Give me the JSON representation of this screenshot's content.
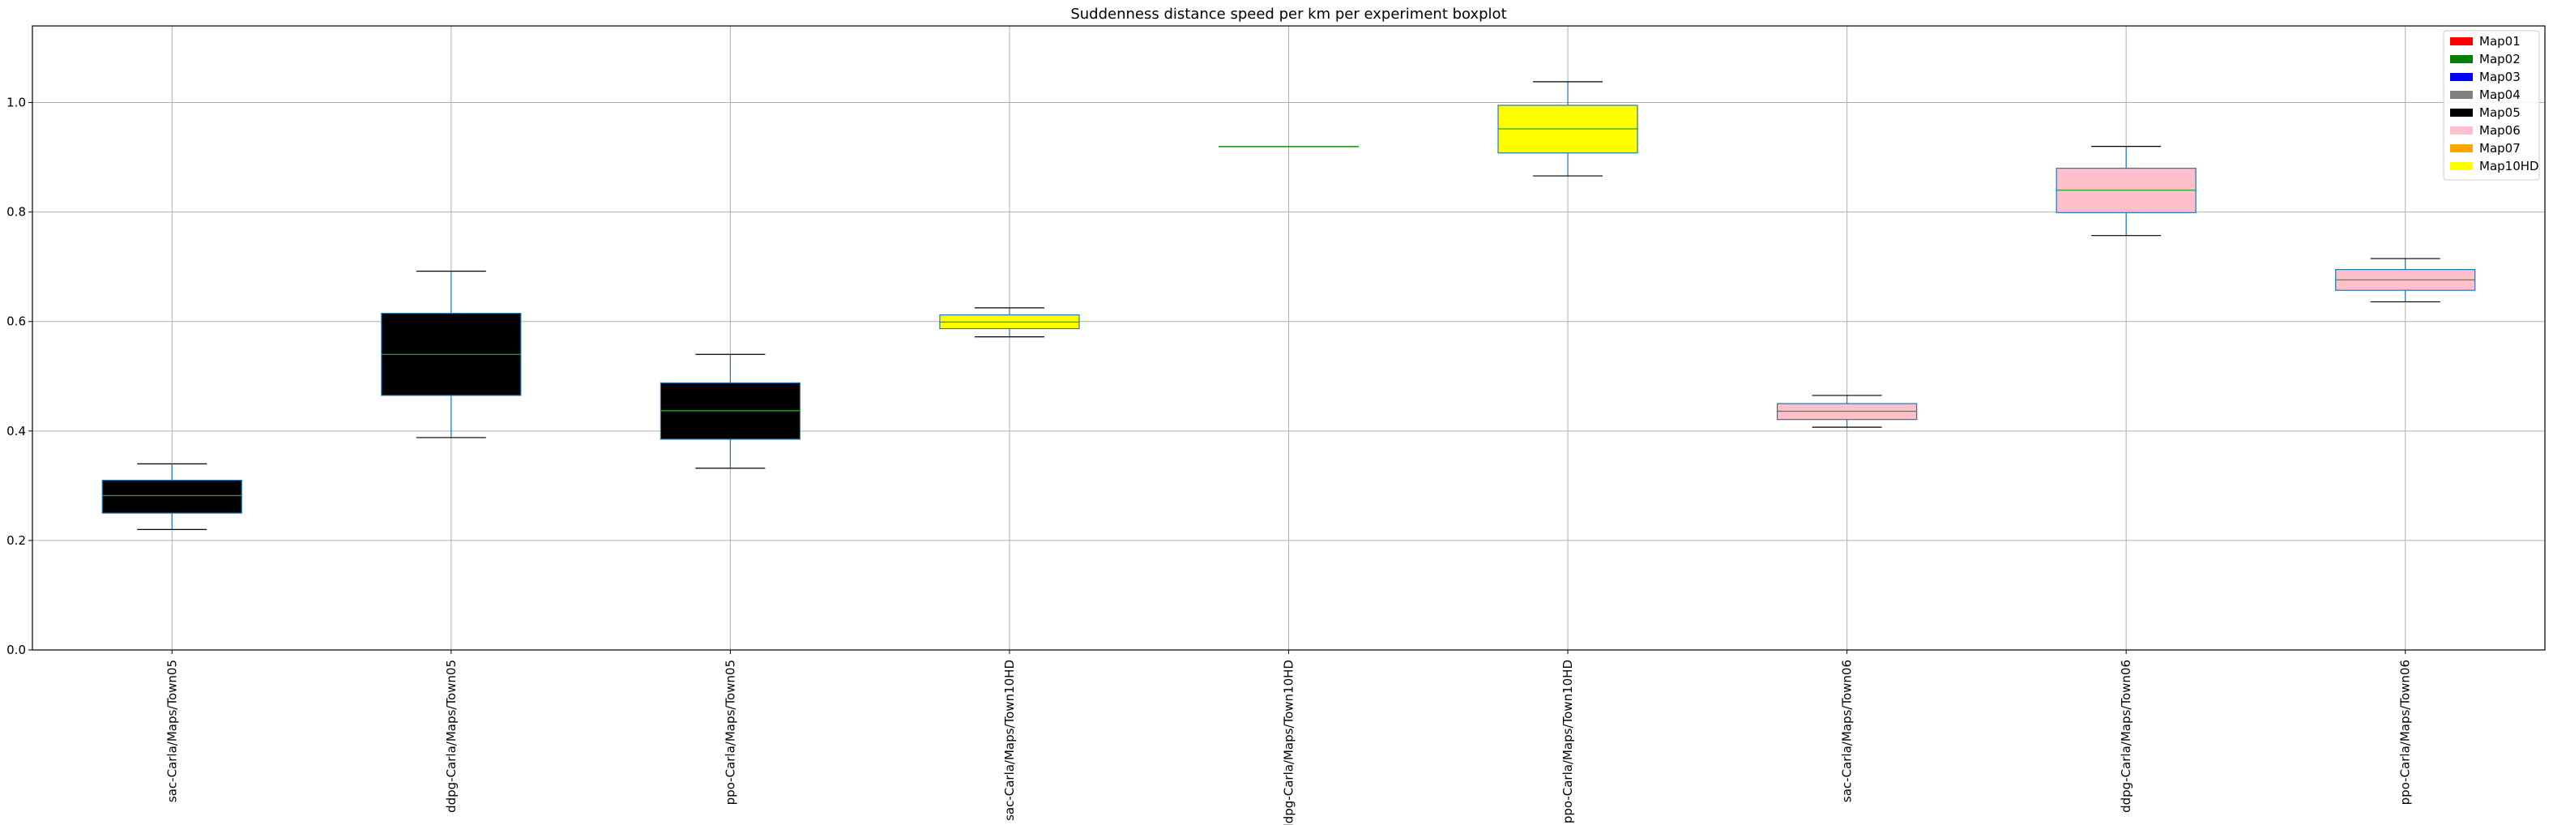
{
  "chart_data": {
    "type": "boxplot",
    "title": "Suddenness distance speed per km per experiment boxplot",
    "xlabel": "",
    "ylabel": "",
    "ylim": [
      0,
      1.14
    ],
    "yticks": [
      "0.0",
      "0.2",
      "0.4",
      "0.6",
      "0.8",
      "1.0"
    ],
    "grid": true,
    "legend_position": "top-right",
    "legend": [
      {
        "label": "Map01",
        "color": "#ff0000"
      },
      {
        "label": "Map02",
        "color": "#008000"
      },
      {
        "label": "Map03",
        "color": "#0000ff"
      },
      {
        "label": "Map04",
        "color": "#808080"
      },
      {
        "label": "Map05",
        "color": "#000000"
      },
      {
        "label": "Map06",
        "color": "#ffc0cb"
      },
      {
        "label": "Map07",
        "color": "#ffa500"
      },
      {
        "label": "Map10HD",
        "color": "#ffff00"
      }
    ],
    "categories": [
      "sac-Carla/Maps/Town05",
      "ddpg-Carla/Maps/Town05",
      "ppo-Carla/Maps/Town05",
      "sac-Carla/Maps/Town10HD",
      "ddpg-Carla/Maps/Town10HD",
      "ppo-Carla/Maps/Town10HD",
      "sac-Carla/Maps/Town06",
      "ddpg-Carla/Maps/Town06",
      "ppo-Carla/Maps/Town06"
    ],
    "boxes": [
      {
        "whislo": 0.22,
        "q1": 0.25,
        "med": 0.282,
        "q3": 0.31,
        "whishi": 0.34,
        "fill": "#000000"
      },
      {
        "whislo": 0.388,
        "q1": 0.465,
        "med": 0.54,
        "q3": 0.615,
        "whishi": 0.692,
        "fill": "#000000"
      },
      {
        "whislo": 0.332,
        "q1": 0.385,
        "med": 0.437,
        "q3": 0.488,
        "whishi": 0.54,
        "fill": "#000000"
      },
      {
        "whislo": 0.572,
        "q1": 0.587,
        "med": 0.599,
        "q3": 0.612,
        "whishi": 0.625,
        "fill": "#ffff00"
      },
      {
        "whislo": 0.92,
        "q1": 0.92,
        "med": 0.92,
        "q3": 0.92,
        "whishi": 0.92,
        "fill": "#ffff00"
      },
      {
        "whislo": 0.866,
        "q1": 0.908,
        "med": 0.952,
        "q3": 0.995,
        "whishi": 1.038,
        "fill": "#ffff00"
      },
      {
        "whislo": 0.407,
        "q1": 0.421,
        "med": 0.436,
        "q3": 0.45,
        "whishi": 0.465,
        "fill": "#ffc0cb"
      },
      {
        "whislo": 0.757,
        "q1": 0.799,
        "med": 0.84,
        "q3": 0.88,
        "whishi": 0.92,
        "fill": "#ffc0cb"
      },
      {
        "whislo": 0.636,
        "q1": 0.657,
        "med": 0.676,
        "q3": 0.695,
        "whishi": 0.715,
        "fill": "#ffc0cb"
      }
    ],
    "box_edge_color": "#1f77b4",
    "median_color": "#2ca02c",
    "cap_color": "#000000"
  }
}
